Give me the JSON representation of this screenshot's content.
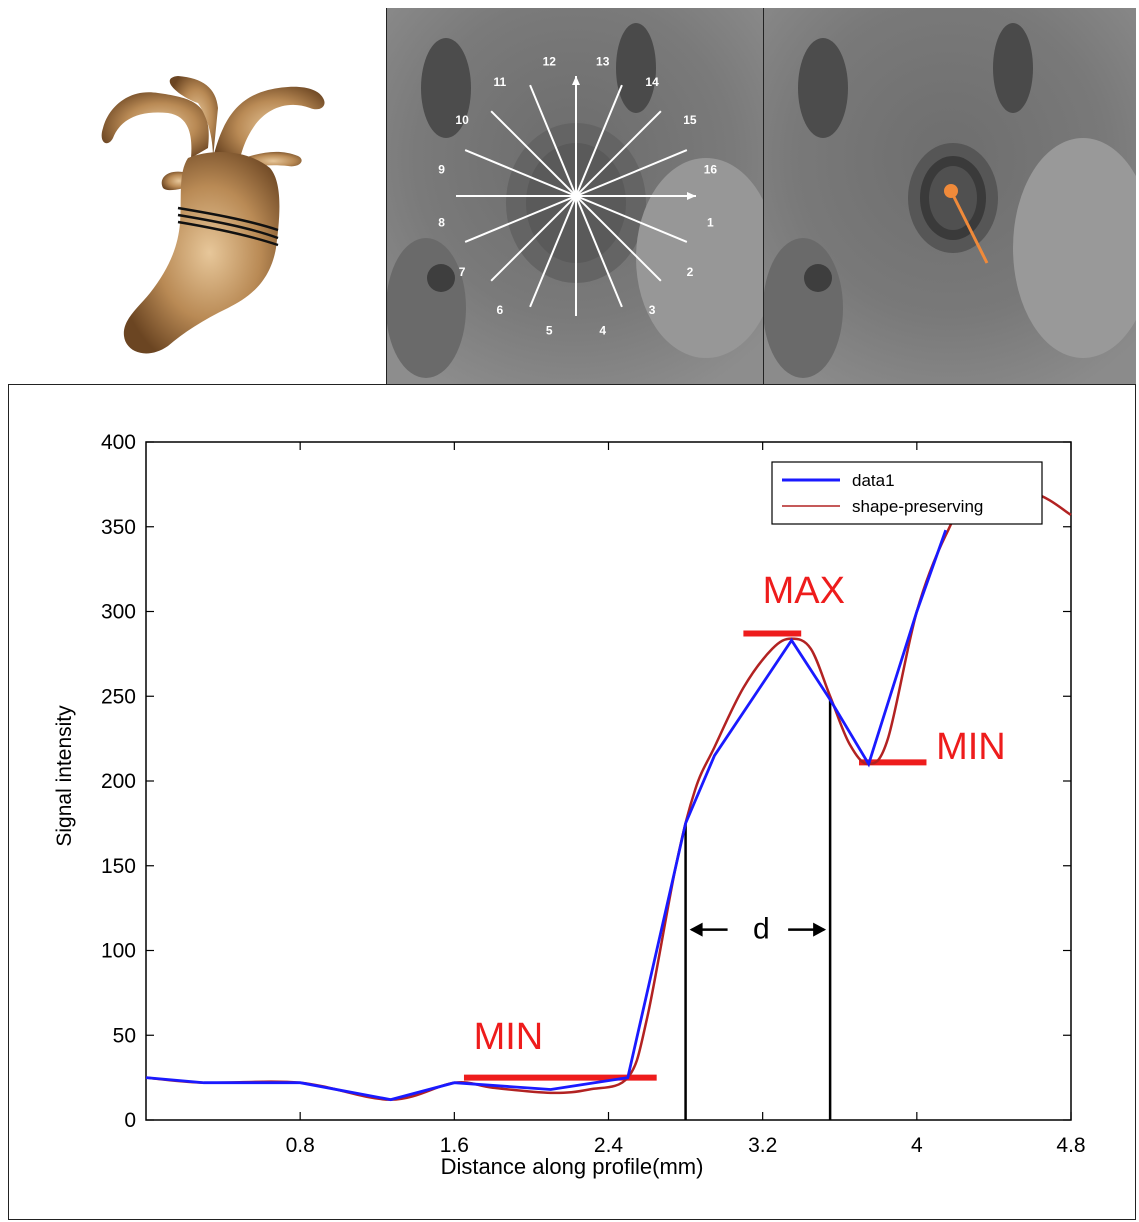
{
  "panels": {
    "clock_labels": [
      "1",
      "2",
      "3",
      "4",
      "5",
      "6",
      "7",
      "8",
      "9",
      "10",
      "11",
      "12",
      "13",
      "14",
      "15",
      "16"
    ]
  },
  "chart_data": {
    "type": "line",
    "title": "",
    "xlabel": "Distance along profile(mm)",
    "ylabel": "Signal intensity",
    "xlim": [
      0,
      4.8
    ],
    "ylim": [
      0,
      400
    ],
    "xticks": [
      0.8,
      1.6,
      2.4,
      3.2,
      4,
      4.8
    ],
    "xtick_labels": [
      "0.8",
      "1.6",
      "2.4",
      "3.2",
      "4",
      "4.8"
    ],
    "yticks": [
      0,
      50,
      100,
      150,
      200,
      250,
      300,
      350,
      400
    ],
    "ytick_labels": [
      "0",
      "50",
      "100",
      "150",
      "200",
      "250",
      "300",
      "350",
      "400"
    ],
    "legend": {
      "placement": "top-right"
    },
    "series": [
      {
        "name": "data1",
        "color": "#1a1aff",
        "x": [
          0,
          0.3,
          0.8,
          1.27,
          1.6,
          2.1,
          2.5,
          2.8,
          2.95,
          3.35,
          3.55,
          3.75,
          4.0,
          4.15
        ],
        "y": [
          25,
          22,
          22,
          12,
          22,
          18,
          25,
          175,
          215,
          283,
          248,
          210,
          300,
          348
        ]
      },
      {
        "name": "shape-preserving",
        "color": "#b22222",
        "x": [
          0,
          0.3,
          0.8,
          1.27,
          1.6,
          1.8,
          2.1,
          2.3,
          2.5,
          2.6,
          2.75,
          2.85,
          2.95,
          3.1,
          3.25,
          3.35,
          3.45,
          3.55,
          3.65,
          3.75,
          3.85,
          4.0,
          4.15,
          4.3,
          4.6,
          4.8
        ],
        "y": [
          25,
          22,
          22,
          12,
          22,
          19,
          16,
          18,
          25,
          60,
          150,
          195,
          220,
          255,
          278,
          284,
          278,
          250,
          222,
          210,
          225,
          300,
          345,
          370,
          370,
          357
        ]
      }
    ],
    "annotations": [
      {
        "text": "MAX",
        "x": 3.2,
        "y": 305,
        "color": "#ee1c1c"
      },
      {
        "text": "MIN",
        "x": 1.7,
        "y": 42,
        "color": "#ee1c1c"
      },
      {
        "text": "MIN",
        "x": 4.1,
        "y": 213,
        "color": "#ee1c1c"
      },
      {
        "text": "d",
        "x": 3.15,
        "y": 107,
        "color": "#000000"
      }
    ],
    "reference_lines": {
      "max": {
        "x1": 3.1,
        "x2": 3.4,
        "y": 287
      },
      "min_left": {
        "x1": 1.65,
        "x2": 2.65,
        "y": 25
      },
      "min_right": {
        "x1": 3.7,
        "x2": 4.05,
        "y": 211
      },
      "vertical_left": {
        "x": 2.8,
        "y1": 0,
        "y2": 175
      },
      "vertical_right": {
        "x": 3.55,
        "y1": 0,
        "y2": 250
      }
    }
  }
}
